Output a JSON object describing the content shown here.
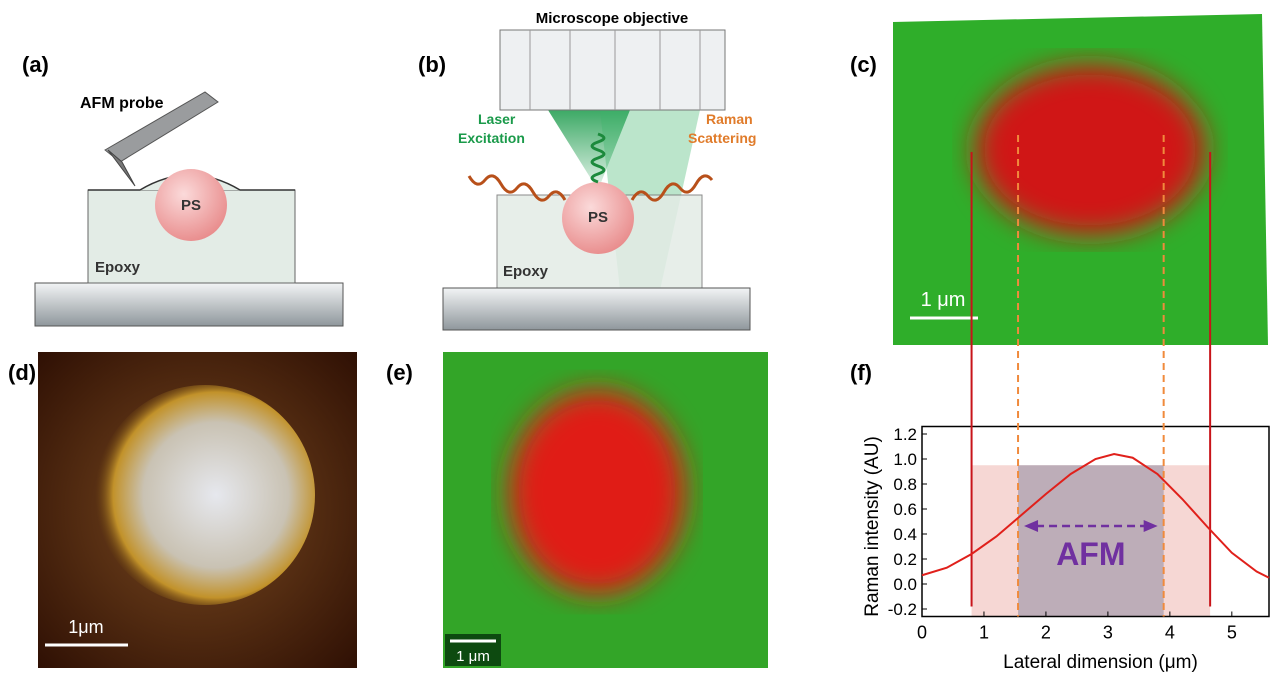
{
  "panel_labels": [
    "(a)",
    "(b)",
    "(c)",
    "(d)",
    "(e)",
    "(f)"
  ],
  "panel_a": {
    "probe_label": "AFM probe",
    "particle_label": "PS",
    "matrix_label": "Epoxy"
  },
  "panel_b": {
    "title": "Microscope objective",
    "laser_label": [
      "Laser",
      "Excitation"
    ],
    "raman_label": [
      "Raman",
      "Scattering"
    ],
    "particle_label": "PS",
    "matrix_label": "Epoxy"
  },
  "panel_c": {
    "scale_label": "1 μm"
  },
  "panel_d": {
    "scale_label": "1μm"
  },
  "panel_e": {
    "scale_label": "1 μm"
  },
  "chart_data": {
    "type": "line",
    "x_label": "Lateral dimension (μm)",
    "y_label": "Raman intensity (AU)",
    "x": [
      0,
      0.4,
      0.8,
      1.2,
      1.6,
      2.0,
      2.4,
      2.8,
      3.1,
      3.4,
      3.8,
      4.2,
      4.6,
      5.0,
      5.4,
      5.6
    ],
    "values": [
      0.07,
      0.13,
      0.24,
      0.38,
      0.55,
      0.72,
      0.88,
      1.0,
      1.04,
      1.01,
      0.88,
      0.68,
      0.46,
      0.25,
      0.1,
      0.05
    ],
    "color": "#e0201b",
    "xlim": [
      0,
      5.6
    ],
    "xticks": [
      0,
      1,
      2,
      3,
      4,
      5
    ],
    "ylim": [
      -0.26,
      1.26
    ],
    "yticks": [
      -0.2,
      {
        "value": 0,
        "label": "0.0"
      },
      0.2,
      0.4,
      0.6,
      0.8,
      {
        "value": 1,
        "label": "1.0"
      },
      1.2
    ],
    "raman_region": [
      0.8,
      4.65
    ],
    "afm_region": [
      1.55,
      3.9
    ],
    "region_top": 0.95,
    "annotation": "AFM"
  }
}
